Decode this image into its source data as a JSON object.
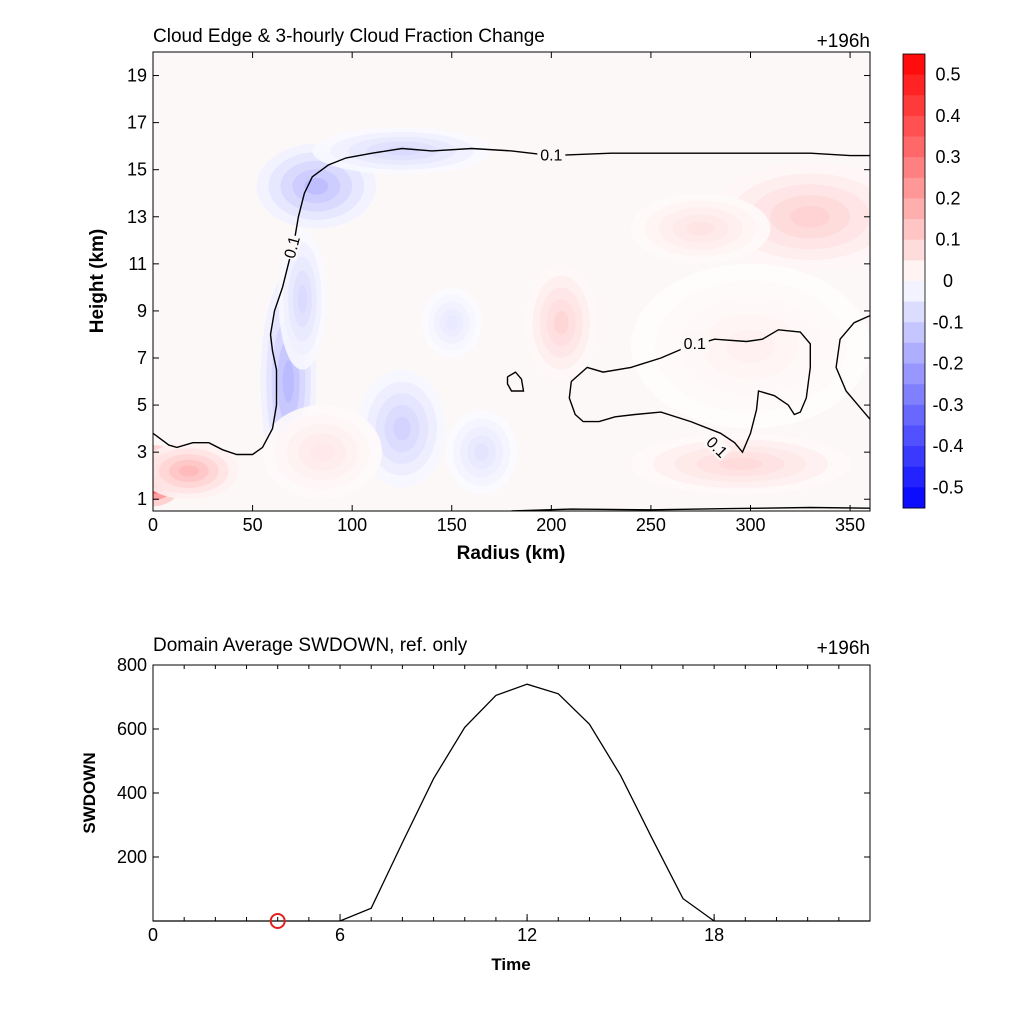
{
  "colors": {
    "positive_max": "#ff0000",
    "negative_max": "#0000ff",
    "zero": "#ffffff",
    "contour": "#000000",
    "marker": "#e02020"
  },
  "chart_data": [
    {
      "type": "heatmap",
      "title": "Cloud Edge & 3-hourly Cloud Fraction Change",
      "time_label": "+196h",
      "xlabel": "Radius (km)",
      "ylabel": "Height (km)",
      "xlim": [
        0,
        360
      ],
      "ylim": [
        0.5,
        20
      ],
      "xticks": [
        0,
        50,
        100,
        150,
        200,
        250,
        300,
        350
      ],
      "yticks": [
        1,
        3,
        5,
        7,
        9,
        11,
        13,
        15,
        17,
        19
      ],
      "grid": false,
      "colorbar": {
        "min": -0.55,
        "max": 0.55,
        "step": 0.05,
        "labels": [
          "0.5",
          "0.4",
          "0.3",
          "0.2",
          "0.1",
          "0",
          "-0.1",
          "-0.2",
          "-0.3",
          "-0.4",
          "-0.5"
        ],
        "label_values": [
          0.5,
          0.4,
          0.3,
          0.2,
          0.1,
          0,
          -0.1,
          -0.2,
          -0.3,
          -0.4,
          -0.5
        ]
      },
      "regions": [
        {
          "center": [
            82,
            14.3
          ],
          "radius": [
            30,
            1.8
          ],
          "value": -0.14
        },
        {
          "center": [
            125,
            15.8
          ],
          "radius": [
            45,
            1.0
          ],
          "value": -0.08
        },
        {
          "center": [
            68,
            6.0
          ],
          "radius": [
            14,
            4.5
          ],
          "value": -0.15
        },
        {
          "center": [
            75,
            9.5
          ],
          "radius": [
            12,
            3.0
          ],
          "value": -0.08
        },
        {
          "center": [
            125,
            4.0
          ],
          "radius": [
            22,
            2.5
          ],
          "value": -0.1
        },
        {
          "center": [
            165,
            3.0
          ],
          "radius": [
            18,
            1.8
          ],
          "value": -0.06
        },
        {
          "center": [
            150,
            8.5
          ],
          "radius": [
            15,
            1.5
          ],
          "value": -0.05
        },
        {
          "center": [
            0,
            2.0
          ],
          "radius": [
            16,
            1.3
          ],
          "value": 0.55
        },
        {
          "center": [
            18,
            2.2
          ],
          "radius": [
            25,
            1.2
          ],
          "value": 0.15
        },
        {
          "center": [
            330,
            13.0
          ],
          "radius": [
            50,
            2.3
          ],
          "value": 0.1
        },
        {
          "center": [
            275,
            12.5
          ],
          "radius": [
            35,
            1.5
          ],
          "value": 0.06
        },
        {
          "center": [
            205,
            8.5
          ],
          "radius": [
            18,
            2.5
          ],
          "value": 0.09
        },
        {
          "center": [
            295,
            2.5
          ],
          "radius": [
            55,
            1.3
          ],
          "value": 0.08
        },
        {
          "center": [
            85,
            3.0
          ],
          "radius": [
            30,
            2.0
          ],
          "value": 0.05
        },
        {
          "center": [
            300,
            7.5
          ],
          "radius": [
            60,
            3.5
          ],
          "value": 0.03
        }
      ],
      "contours": [
        {
          "level": "0.1",
          "points": [
            [
              0,
              3.8
            ],
            [
              8,
              3.3
            ],
            [
              12,
              3.2
            ],
            [
              20,
              3.4
            ],
            [
              28,
              3.4
            ],
            [
              35,
              3.1
            ],
            [
              42,
              2.9
            ],
            [
              50,
              2.9
            ],
            [
              55,
              3.2
            ],
            [
              60,
              4.0
            ],
            [
              62,
              5.0
            ],
            [
              62,
              6.5
            ],
            [
              60,
              7.3
            ],
            [
              59,
              8.0
            ],
            [
              61,
              9.0
            ],
            [
              65,
              10.0
            ],
            [
              68,
              11.0
            ],
            [
              71,
              12.0
            ],
            [
              73,
              13.0
            ],
            [
              76,
              14.0
            ],
            [
              80,
              14.7
            ],
            [
              88,
              15.2
            ],
            [
              97,
              15.5
            ],
            [
              110,
              15.7
            ],
            [
              125,
              15.9
            ],
            [
              140,
              15.8
            ],
            [
              160,
              15.9
            ],
            [
              180,
              15.8
            ],
            [
              200,
              15.6
            ],
            [
              230,
              15.7
            ],
            [
              260,
              15.7
            ],
            [
              300,
              15.7
            ],
            [
              330,
              15.7
            ],
            [
              350,
              15.6
            ],
            [
              360,
              15.6
            ]
          ],
          "label_at": [
            200,
            15.6
          ]
        },
        {
          "level": "0.1",
          "points": [
            [
              210,
              6.0
            ],
            [
              218,
              6.6
            ],
            [
              226,
              6.4
            ],
            [
              240,
              6.6
            ],
            [
              255,
              7.0
            ],
            [
              266,
              7.4
            ],
            [
              282,
              7.8
            ],
            [
              298,
              7.7
            ],
            [
              306,
              7.8
            ],
            [
              314,
              8.2
            ],
            [
              325,
              8.1
            ],
            [
              330,
              7.6
            ],
            [
              330,
              6.6
            ],
            [
              328,
              5.3
            ],
            [
              325,
              4.7
            ],
            [
              322,
              4.6
            ],
            [
              319,
              5.0
            ],
            [
              312,
              5.4
            ],
            [
              304,
              5.6
            ],
            [
              303,
              4.8
            ],
            [
              300,
              3.8
            ],
            [
              296,
              3.0
            ],
            [
              292,
              3.4
            ],
            [
              285,
              3.8
            ],
            [
              270,
              4.3
            ],
            [
              255,
              4.7
            ],
            [
              242,
              4.6
            ],
            [
              232,
              4.5
            ],
            [
              224,
              4.3
            ],
            [
              216,
              4.3
            ],
            [
              212,
              4.6
            ],
            [
              209,
              5.3
            ],
            [
              210,
              6.0
            ]
          ],
          "label_at": [
            272,
            7.6
          ]
        },
        {
          "level": "0.1",
          "points": [
            [
              178,
              6.2
            ],
            [
              182,
              6.4
            ],
            [
              185,
              6.1
            ],
            [
              186,
              5.6
            ],
            [
              180,
              5.6
            ],
            [
              178,
              5.9
            ],
            [
              178,
              6.2
            ]
          ]
        },
        {
          "level": "0.1",
          "points": [
            [
              360,
              8.8
            ],
            [
              352,
              8.5
            ],
            [
              345,
              7.8
            ],
            [
              343,
              6.6
            ],
            [
              348,
              5.6
            ],
            [
              356,
              4.8
            ],
            [
              360,
              4.4
            ]
          ]
        },
        {
          "level": "0.1",
          "points": [
            [
              180,
              0.5
            ],
            [
              210,
              0.58
            ],
            [
              250,
              0.55
            ],
            [
              290,
              0.6
            ],
            [
              330,
              0.65
            ],
            [
              360,
              0.62
            ]
          ]
        }
      ]
    },
    {
      "type": "line",
      "title": "Domain Average SWDOWN, ref. only",
      "time_label": "+196h",
      "xlabel": "Time",
      "ylabel": "SWDOWN",
      "xlim": [
        0,
        23
      ],
      "ylim": [
        0,
        800
      ],
      "xticks": [
        0,
        6,
        12,
        18
      ],
      "yticks": [
        200,
        400,
        600,
        800
      ],
      "grid": false,
      "x": [
        0,
        1,
        2,
        3,
        4,
        5,
        6,
        7,
        8,
        9,
        10,
        11,
        12,
        13,
        14,
        15,
        16,
        17,
        18,
        19,
        20,
        21,
        22,
        23
      ],
      "series": [
        {
          "values": [
            0,
            0,
            0,
            0,
            0,
            0,
            0,
            40,
            245,
            445,
            605,
            705,
            740,
            710,
            615,
            455,
            260,
            70,
            0,
            0,
            0,
            0,
            0,
            0
          ]
        }
      ],
      "marker": {
        "x": 4,
        "y": 0
      }
    }
  ]
}
